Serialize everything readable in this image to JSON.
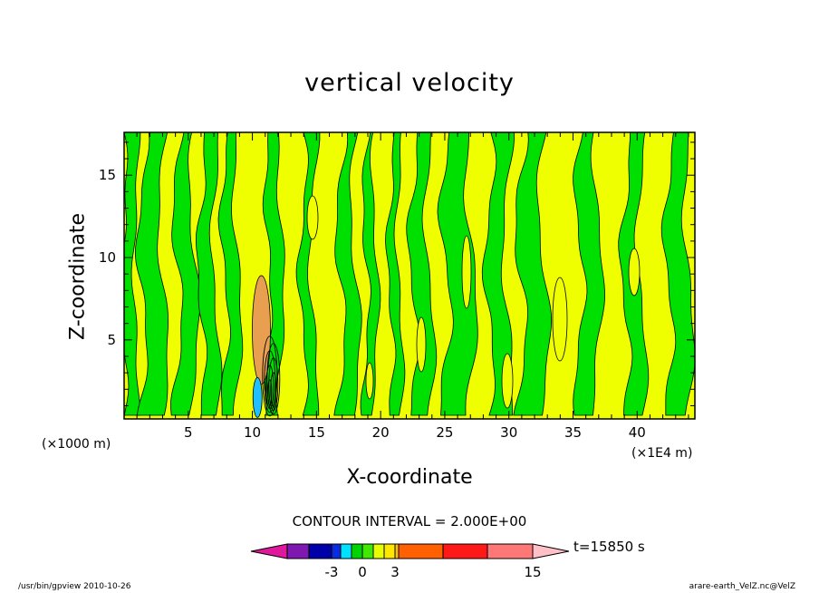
{
  "chart_data": {
    "type": "heatmap",
    "title": "vertical velocity",
    "xlabel": "X-coordinate",
    "ylabel": "Z-coordinate",
    "x_unit_left": "(×1000 m)",
    "x_unit_right": "(×1E4 m)",
    "x_ticks": [
      5,
      10,
      15,
      20,
      25,
      30,
      35,
      40
    ],
    "y_ticks": [
      5,
      10,
      15
    ],
    "xlim": [
      0,
      44.5
    ],
    "ylim": [
      0.2,
      17.6
    ],
    "contour_interval_text": "CONTOUR INTERVAL = 2.000E+00",
    "time_text": "t=15850 s",
    "colorbar_ticks": [
      {
        "label": "-3",
        "value": -3
      },
      {
        "label": "0",
        "value": 0
      },
      {
        "label": "3",
        "value": 3
      },
      {
        "label": "15",
        "value": 15
      }
    ],
    "colorbar_colors": [
      "#e0189c",
      "#7f18b0",
      "#0000aa",
      "#0a2ce0",
      "#1e7cff",
      "#00e0ff",
      "#00d400",
      "#40ea00",
      "#e8ff00",
      "#ffe800",
      "#ffc000",
      "#ff8c00",
      "#ff6000",
      "#ff1818",
      "#ff7878",
      "#ffc0c8"
    ],
    "field_colors": {
      "negative": "#00e000",
      "positive": "#f0ff00",
      "updraft": "#e8a050",
      "downdraft": "#20c0ff",
      "contour": "#000000"
    }
  },
  "footer": {
    "left": "/usr/bin/gpview   2010-10-26",
    "right": "arare-earth_VelZ.nc@VelZ"
  }
}
